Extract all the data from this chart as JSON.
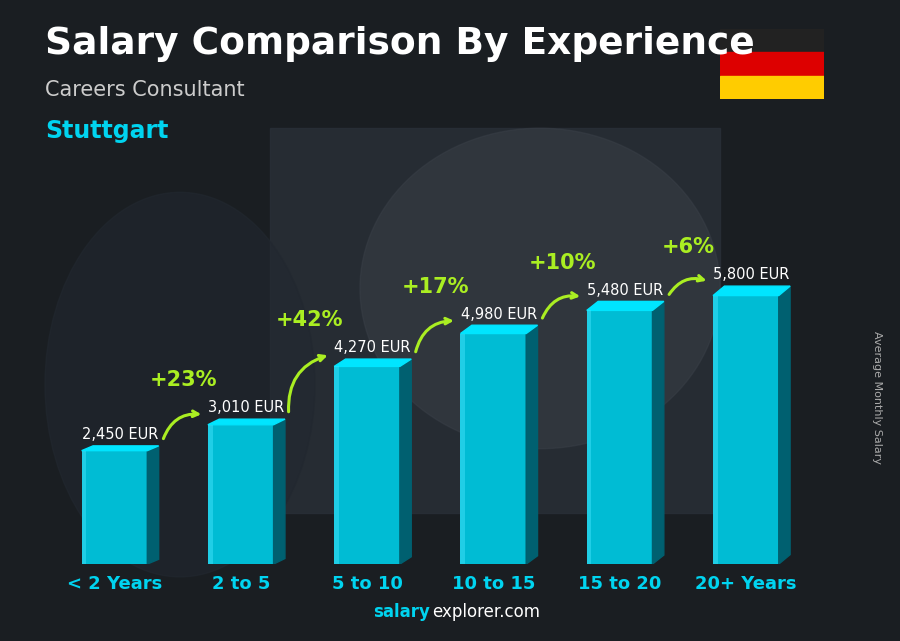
{
  "title": "Salary Comparison By Experience",
  "subtitle": "Careers Consultant",
  "city": "Stuttgart",
  "ylabel": "Average Monthly Salary",
  "footer_bold": "salary",
  "footer_normal": "explorer.com",
  "categories": [
    "< 2 Years",
    "2 to 5",
    "5 to 10",
    "10 to 15",
    "15 to 20",
    "20+ Years"
  ],
  "values": [
    2450,
    3010,
    4270,
    4980,
    5480,
    5800
  ],
  "labels": [
    "2,450 EUR",
    "3,010 EUR",
    "4,270 EUR",
    "4,980 EUR",
    "5,480 EUR",
    "5,800 EUR"
  ],
  "pct_changes": [
    null,
    "+23%",
    "+42%",
    "+17%",
    "+10%",
    "+6%"
  ],
  "bar_front_color": "#00bcd4",
  "bar_side_color": "#006070",
  "bar_top_color": "#00e5ff",
  "title_color": "#ffffff",
  "subtitle_color": "#cccccc",
  "city_color": "#00d4f0",
  "label_color": "#ffffff",
  "pct_color": "#aaee22",
  "xticklabel_color": "#00d4f0",
  "footer_cyan": "#00d4f0",
  "footer_white": "#ffffff",
  "arrow_color": "#aaee22",
  "bg_dark": "#2a2a2a",
  "ylim": [
    0,
    7200
  ],
  "bar_width": 0.52,
  "title_fontsize": 27,
  "subtitle_fontsize": 15,
  "city_fontsize": 17,
  "label_fontsize": 10.5,
  "pct_fontsize": 15,
  "xtick_fontsize": 13,
  "footer_fontsize": 12,
  "ylabel_fontsize": 8
}
